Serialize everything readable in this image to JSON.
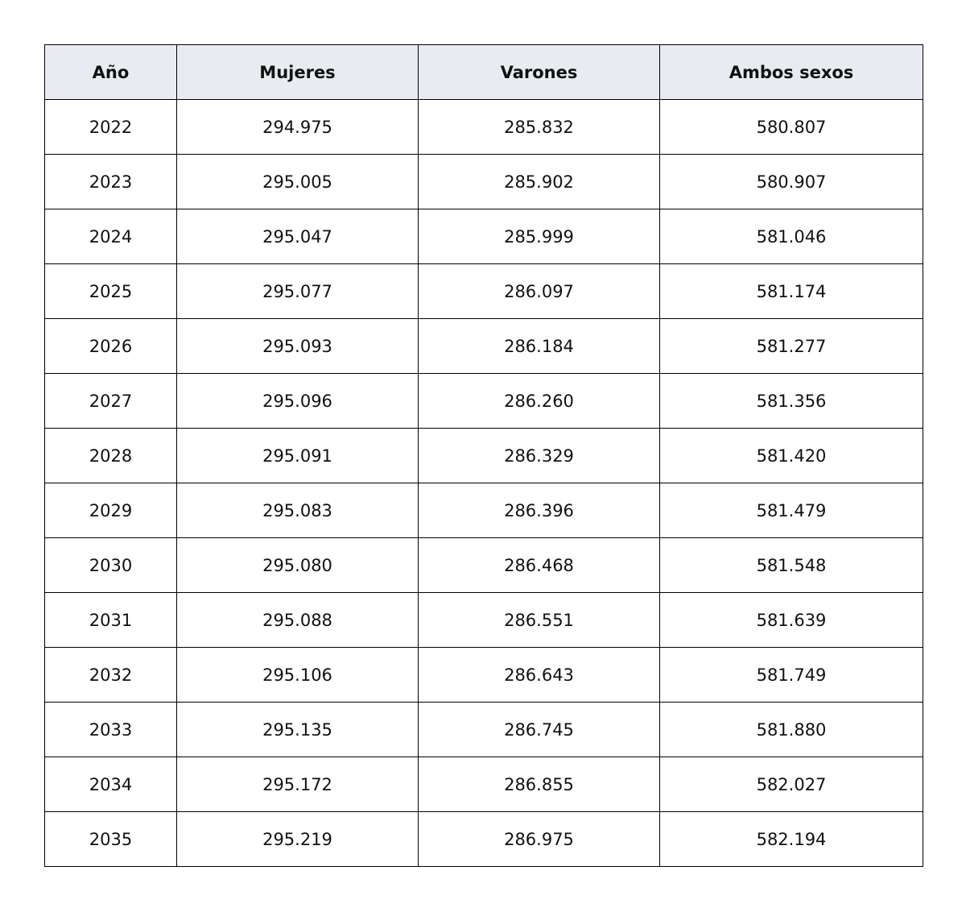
{
  "table": {
    "header": [
      "Año",
      "Mujeres",
      "Varones",
      "Ambos sexos"
    ],
    "rows": [
      [
        "2022",
        "294.975",
        "285.832",
        "580.807"
      ],
      [
        "2023",
        "295.005",
        "285.902",
        "580.907"
      ],
      [
        "2024",
        "295.047",
        "285.999",
        "581.046"
      ],
      [
        "2025",
        "295.077",
        "286.097",
        "581.174"
      ],
      [
        "2026",
        "295.093",
        "286.184",
        "581.277"
      ],
      [
        "2027",
        "295.096",
        "286.260",
        "581.356"
      ],
      [
        "2028",
        "295.091",
        "286.329",
        "581.420"
      ],
      [
        "2029",
        "295.083",
        "286.396",
        "581.479"
      ],
      [
        "2030",
        "295.080",
        "286.468",
        "581.548"
      ],
      [
        "2031",
        "295.088",
        "286.551",
        "581.639"
      ],
      [
        "2032",
        "295.106",
        "286.643",
        "581.749"
      ],
      [
        "2033",
        "295.135",
        "286.745",
        "581.880"
      ],
      [
        "2034",
        "295.172",
        "286.855",
        "582.027"
      ],
      [
        "2035",
        "295.219",
        "286.975",
        "582.194"
      ]
    ]
  }
}
